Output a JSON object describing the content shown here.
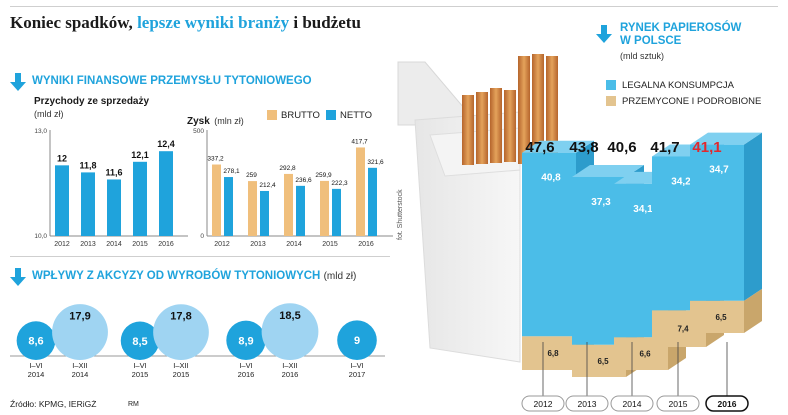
{
  "headline": {
    "part1": "Koniec spadków, ",
    "part2": "lepsze wyniki branży",
    "part3": " i budżetu"
  },
  "section_financial": {
    "title": "WYNIKI FINANSOWE PRZEMYSŁU TYTONIOWEGO"
  },
  "section_excise": {
    "title": "WPŁYWY Z AKCYZY OD WYROBÓW TYTONIOWYCH",
    "unit": "(mld zł)"
  },
  "section_market": {
    "title_line1": "RYNEK PAPIEROSÓW",
    "title_line2": "W POLSCE",
    "unit": "(mld sztuk)"
  },
  "photo_credit": "fot. Shutterstock",
  "footer": {
    "source": "Źródło: KPMG, IERiGŻ",
    "author": "RM"
  },
  "colors": {
    "accent": "#1fa3dc",
    "brutto": "#f0bf7c",
    "netto": "#1fa3dc",
    "excise": "#9fd4f2",
    "legal": "#4bbde8",
    "smuggled": "#e3c48f",
    "red": "#e0292e"
  },
  "chart_data": [
    {
      "type": "bar",
      "title": "Przychody ze sprzedaży",
      "ylabel": "(mld zł)",
      "categories": [
        "2012",
        "2013",
        "2014",
        "2015",
        "2016"
      ],
      "values": [
        12,
        11.8,
        11.6,
        12.1,
        12.4
      ],
      "value_labels": [
        "12",
        "11,8",
        "11,6",
        "12,1",
        "12,4"
      ],
      "ylim": [
        10.0,
        13.0
      ],
      "ytick_labels": [
        "10,0",
        "13,0"
      ]
    },
    {
      "type": "bar",
      "title": "Zysk",
      "ylabel": "(mln zł)",
      "categories": [
        "2012",
        "2013",
        "2014",
        "2015",
        "2016"
      ],
      "series": [
        {
          "name": "BRUTTO",
          "values": [
            337.2,
            259,
            292.8,
            259.9,
            417.7
          ],
          "labels": [
            "337,2",
            "259",
            "292,8",
            "259,9",
            "417,7"
          ]
        },
        {
          "name": "NETTO",
          "values": [
            278.1,
            212.4,
            236.6,
            222.3,
            321.6
          ],
          "labels": [
            "278,1",
            "212,4",
            "236,6",
            "222,3",
            "321,6"
          ]
        }
      ],
      "ylim": [
        0,
        500
      ],
      "ytick_labels": [
        "0",
        "500"
      ]
    },
    {
      "type": "bar",
      "title": "WPŁYWY Z AKCYZY OD WYROBÓW TYTONIOWYCH (mld zł)",
      "categories": [
        [
          "I–VI",
          "2014"
        ],
        [
          "I–XII",
          "2014"
        ],
        [
          "I–VI",
          "2015"
        ],
        [
          "I–XII",
          "2015"
        ],
        [
          "I–VI",
          "2016"
        ],
        [
          "I–XII",
          "2016"
        ],
        [
          "I–VI",
          "2017"
        ]
      ],
      "values": [
        8.6,
        17.9,
        8.5,
        17.8,
        8.9,
        18.5,
        9
      ],
      "labels": [
        "8,6",
        "17,9",
        "8,5",
        "17,8",
        "8,9",
        "18,5",
        "9"
      ]
    },
    {
      "type": "bar",
      "title": "RYNEK PAPIEROSÓW W POLSCE (mld sztuk)",
      "categories": [
        "2012",
        "2013",
        "2014",
        "2015",
        "2016"
      ],
      "totals": [
        47.6,
        43.8,
        40.6,
        41.7,
        41.1
      ],
      "total_labels": [
        "47,6",
        "43,8",
        "40,6",
        "41,7",
        "41,1"
      ],
      "series": [
        {
          "name": "LEGALNA KONSUMPCJA",
          "values": [
            40.8,
            37.3,
            34.1,
            34.2,
            34.7
          ],
          "labels": [
            "40,8",
            "37,3",
            "34,1",
            "34,2",
            "34,7"
          ]
        },
        {
          "name": "PRZEMYCONE I PODROBIONE",
          "values": [
            6.8,
            6.5,
            6.6,
            7.4,
            6.5
          ],
          "labels": [
            "6,8",
            "6,5",
            "6,6",
            "7,4",
            "6,5"
          ]
        }
      ]
    }
  ]
}
